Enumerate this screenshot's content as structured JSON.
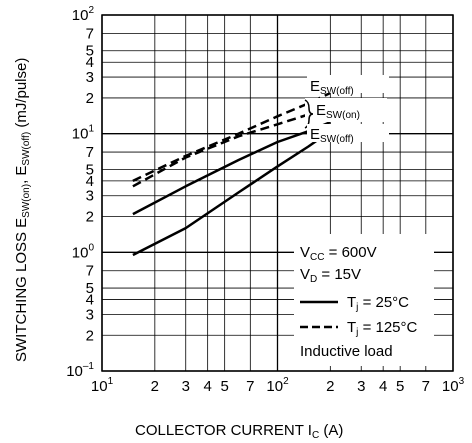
{
  "chart_data": {
    "type": "line",
    "x_scale": "log",
    "y_scale": "log",
    "xlim": [
      10,
      1000
    ],
    "ylim": [
      0.1,
      100
    ],
    "grid": true,
    "xlabel": "COLLECTOR CURRENT  I",
    "xlabel_sub": "C",
    "xlabel_unit": " (A)",
    "ylabel": "SWITCHING LOSS  E",
    "ylabel_sub1": "SW(on)",
    "ylabel_sep": ", E",
    "ylabel_sub2": "SW(off)",
    "ylabel_unit": " (mJ/pulse)",
    "x_ticks": [
      {
        "value": 10,
        "base": "10",
        "sup": "1"
      },
      {
        "value": 20,
        "label": "2"
      },
      {
        "value": 30,
        "label": "3"
      },
      {
        "value": 40,
        "label": "4"
      },
      {
        "value": 50,
        "label": "5"
      },
      {
        "value": 70,
        "label": "7"
      },
      {
        "value": 100,
        "base": "10",
        "sup": "2"
      },
      {
        "value": 200,
        "label": "2"
      },
      {
        "value": 300,
        "label": "3"
      },
      {
        "value": 400,
        "label": "4"
      },
      {
        "value": 500,
        "label": "5"
      },
      {
        "value": 700,
        "label": "7"
      },
      {
        "value": 1000,
        "base": "10",
        "sup": "3"
      }
    ],
    "y_ticks": [
      {
        "value": 0.1,
        "base": "10",
        "sup": "–1"
      },
      {
        "value": 0.2,
        "label": "2"
      },
      {
        "value": 0.3,
        "label": "3"
      },
      {
        "value": 0.4,
        "label": "4"
      },
      {
        "value": 0.5,
        "label": "5"
      },
      {
        "value": 0.7,
        "label": "7"
      },
      {
        "value": 1,
        "base": "10",
        "sup": "0"
      },
      {
        "value": 2,
        "label": "2"
      },
      {
        "value": 3,
        "label": "3"
      },
      {
        "value": 4,
        "label": "4"
      },
      {
        "value": 5,
        "label": "5"
      },
      {
        "value": 7,
        "label": "7"
      },
      {
        "value": 10,
        "base": "10",
        "sup": "1"
      },
      {
        "value": 20,
        "label": "2"
      },
      {
        "value": 30,
        "label": "3"
      },
      {
        "value": 40,
        "label": "4"
      },
      {
        "value": 50,
        "label": "5"
      },
      {
        "value": 70,
        "label": "7"
      },
      {
        "value": 100,
        "base": "10",
        "sup": "2"
      }
    ],
    "series": [
      {
        "curve": "esw_off_25",
        "style": "solid",
        "x": [
          15,
          30,
          60,
          100,
          150,
          200
        ],
        "y": [
          2.1,
          3.6,
          6.0,
          8.5,
          10.5,
          12.5
        ]
      },
      {
        "curve": "esw_on_25",
        "style": "solid",
        "x": [
          15,
          30,
          60,
          100,
          150,
          200
        ],
        "y": [
          0.95,
          1.6,
          3.2,
          5.3,
          7.8,
          10.5
        ]
      },
      {
        "curve": "esw_off_125",
        "style": "dashed",
        "x": [
          15,
          30,
          60,
          100,
          150,
          200
        ],
        "y": [
          4.0,
          6.5,
          10.0,
          14.0,
          18.0,
          22.0
        ]
      },
      {
        "curve": "esw_on_125",
        "style": "dashed",
        "x": [
          15,
          30,
          60,
          100,
          150,
          200
        ],
        "y": [
          3.6,
          6.3,
          9.5,
          12.0,
          14.5,
          17.0
        ]
      }
    ],
    "annotations": {
      "esw_off_upper": {
        "main": "E",
        "sub": "SW(off)"
      },
      "esw_on": {
        "main": "E",
        "sub": "SW(on)"
      },
      "esw_off_lower": {
        "main": "E",
        "sub": "SW(off)"
      }
    },
    "legend": {
      "placement": "bottom-right",
      "vcc": {
        "main": "V",
        "sub": "CC",
        "rest": " = 600V"
      },
      "vd": {
        "main": "V",
        "sub": "D",
        "rest": " = 15V"
      },
      "tj25": {
        "main": "T",
        "sub": "j",
        "rest": " = 25°C"
      },
      "tj125": {
        "main": "T",
        "sub": "j",
        "rest": " = 125°C"
      },
      "load": "Inductive load"
    }
  }
}
